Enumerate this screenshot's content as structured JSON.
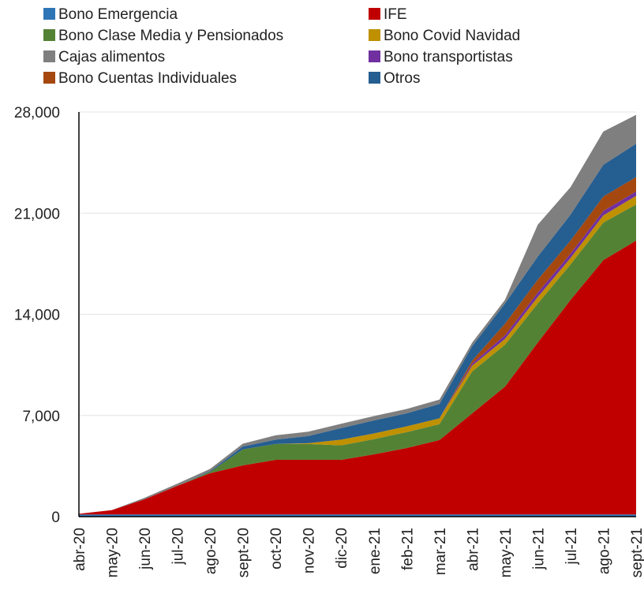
{
  "chart_data": {
    "type": "stacked_area",
    "categories": [
      "abr-20",
      "may-20",
      "jun-20",
      "jul-20",
      "ago-20",
      "sept-20",
      "oct-20",
      "nov-20",
      "dic-20",
      "ene-21",
      "feb-21",
      "mar-21",
      "abr-21",
      "may-21",
      "jun-21",
      "jul-21",
      "ago-21",
      "sept-21"
    ],
    "series": [
      {
        "name": "Bono Emergencia",
        "color": "#2e75b6",
        "values": [
          150,
          150,
          150,
          150,
          150,
          150,
          150,
          150,
          150,
          150,
          150,
          150,
          150,
          150,
          150,
          150,
          150,
          150
        ]
      },
      {
        "name": "IFE",
        "color": "#c00000",
        "values": [
          50,
          300,
          1050,
          1980,
          2850,
          3400,
          3780,
          3780,
          3780,
          4160,
          4600,
          5150,
          7000,
          8850,
          11900,
          14850,
          17600,
          18950
        ]
      },
      {
        "name": "Bono Clase Media y Pensionados",
        "color": "#548235",
        "values": [
          0,
          0,
          0,
          0,
          100,
          1100,
          1100,
          1100,
          1000,
          1050,
          1100,
          1100,
          2900,
          2900,
          2700,
          2450,
          2600,
          2500
        ]
      },
      {
        "name": "Bono Covid Navidad",
        "color": "#bf9000",
        "values": [
          0,
          0,
          0,
          0,
          0,
          0,
          0,
          50,
          400,
          400,
          400,
          400,
          400,
          400,
          450,
          450,
          500,
          600
        ]
      },
      {
        "name": "Bono transportistas",
        "color": "#7030a0",
        "values": [
          0,
          0,
          0,
          0,
          0,
          0,
          0,
          0,
          0,
          0,
          0,
          0,
          150,
          250,
          300,
          300,
          300,
          300
        ]
      },
      {
        "name": "Bono Cuentas Individuales",
        "color": "#a5480f",
        "values": [
          0,
          0,
          0,
          0,
          0,
          0,
          0,
          0,
          0,
          0,
          0,
          0,
          200,
          800,
          900,
          900,
          1000,
          1000
        ]
      },
      {
        "name": "Otros",
        "color": "#255e91",
        "values": [
          0,
          0,
          0,
          0,
          50,
          200,
          300,
          500,
          800,
          900,
          900,
          1000,
          1000,
          1400,
          1600,
          1800,
          2200,
          2300
        ]
      },
      {
        "name": "Cajas alimentos",
        "color": "#7f7f7f",
        "values": [
          0,
          0,
          100,
          150,
          150,
          200,
          300,
          300,
          300,
          300,
          300,
          300,
          250,
          250,
          2200,
          1900,
          2300,
          2000
        ]
      }
    ],
    "ylim": [
      0,
      28000
    ],
    "yticks": [
      0,
      {
        "value": 7000,
        "label": "7,000"
      },
      {
        "value": 14000,
        "label": "14,000"
      },
      {
        "value": 21000,
        "label": "21,000"
      },
      {
        "value": 28000,
        "label": "28,000"
      }
    ],
    "grid": true,
    "legend_order": [
      0,
      1,
      2,
      3,
      7,
      4,
      5,
      6
    ]
  }
}
